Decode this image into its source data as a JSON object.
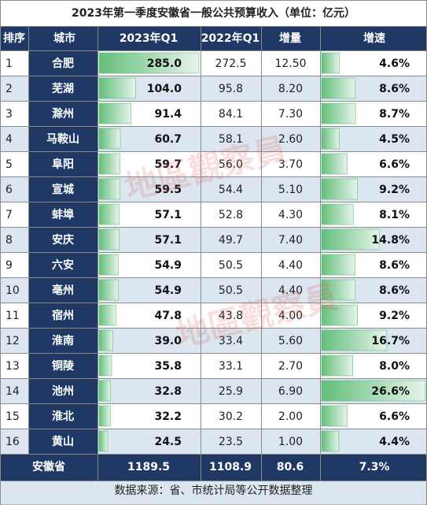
{
  "title": "2023年第一季度安徽省一般公共预算收入（单位：亿元）",
  "headers": {
    "rank": "排序",
    "city": "城市",
    "q1_2023": "2023年Q1",
    "q1_2022": "2022年Q1",
    "increase": "增量",
    "growth": "增速"
  },
  "chart_data": {
    "type": "table",
    "title": "2023年第一季度安徽省一般公共预算收入（单位：亿元）",
    "columns": [
      "排序",
      "城市",
      "2023年Q1",
      "2022年Q1",
      "增量",
      "增速"
    ],
    "rows": [
      {
        "rank": "1",
        "city": "合肥",
        "q1_2023": 285.0,
        "q1_2022": "272.5",
        "increase": "12.50",
        "growth": 4.6
      },
      {
        "rank": "2",
        "city": "芜湖",
        "q1_2023": 104.0,
        "q1_2022": "95.8",
        "increase": "8.20",
        "growth": 8.6
      },
      {
        "rank": "3",
        "city": "滁州",
        "q1_2023": 91.4,
        "q1_2022": "84.1",
        "increase": "7.30",
        "growth": 8.7
      },
      {
        "rank": "4",
        "city": "马鞍山",
        "q1_2023": 60.7,
        "q1_2022": "58.1",
        "increase": "2.60",
        "growth": 4.5
      },
      {
        "rank": "5",
        "city": "阜阳",
        "q1_2023": 59.7,
        "q1_2022": "56.0",
        "increase": "3.70",
        "growth": 6.6
      },
      {
        "rank": "6",
        "city": "宣城",
        "q1_2023": 59.5,
        "q1_2022": "54.4",
        "increase": "5.10",
        "growth": 9.2
      },
      {
        "rank": "7",
        "city": "蚌埠",
        "q1_2023": 57.1,
        "q1_2022": "52.8",
        "increase": "4.30",
        "growth": 8.1
      },
      {
        "rank": "8",
        "city": "安庆",
        "q1_2023": 57.1,
        "q1_2022": "49.7",
        "increase": "7.40",
        "growth": 14.8
      },
      {
        "rank": "9",
        "city": "六安",
        "q1_2023": 54.9,
        "q1_2022": "50.5",
        "increase": "4.40",
        "growth": 8.6
      },
      {
        "rank": "10",
        "city": "亳州",
        "q1_2023": 54.9,
        "q1_2022": "50.5",
        "increase": "4.40",
        "growth": 8.6
      },
      {
        "rank": "11",
        "city": "宿州",
        "q1_2023": 47.8,
        "q1_2022": "43.8",
        "increase": "4.00",
        "growth": 9.2
      },
      {
        "rank": "12",
        "city": "淮南",
        "q1_2023": 39.0,
        "q1_2022": "33.4",
        "increase": "5.60",
        "growth": 16.7
      },
      {
        "rank": "13",
        "city": "铜陵",
        "q1_2023": 35.8,
        "q1_2022": "33.1",
        "increase": "2.70",
        "growth": 8.0
      },
      {
        "rank": "14",
        "city": "池州",
        "q1_2023": 32.8,
        "q1_2022": "25.9",
        "increase": "6.90",
        "growth": 26.6
      },
      {
        "rank": "15",
        "city": "淮北",
        "q1_2023": 32.2,
        "q1_2022": "30.2",
        "increase": "2.00",
        "growth": 6.6
      },
      {
        "rank": "16",
        "city": "黄山",
        "q1_2023": 24.5,
        "q1_2022": "23.5",
        "increase": "1.00",
        "growth": 4.4
      }
    ],
    "total": {
      "label": "安徽省",
      "q1_2023": "1189.5",
      "q1_2022": "1108.9",
      "increase": "80.6",
      "growth": "7.3%"
    },
    "value_decimals": 1,
    "growth_suffix": "%"
  },
  "watermark": "地區觀察員",
  "footer": "数据来源：省、市统计局等公开数据整理",
  "colors": {
    "header_bg": "#1f3864",
    "city_bg": "#1f3864",
    "row_light": "#ffffff",
    "row_alt": "#dce6f1",
    "bar": "#63be7b",
    "grid": "#8a8a8a",
    "watermark": "#e05050"
  }
}
